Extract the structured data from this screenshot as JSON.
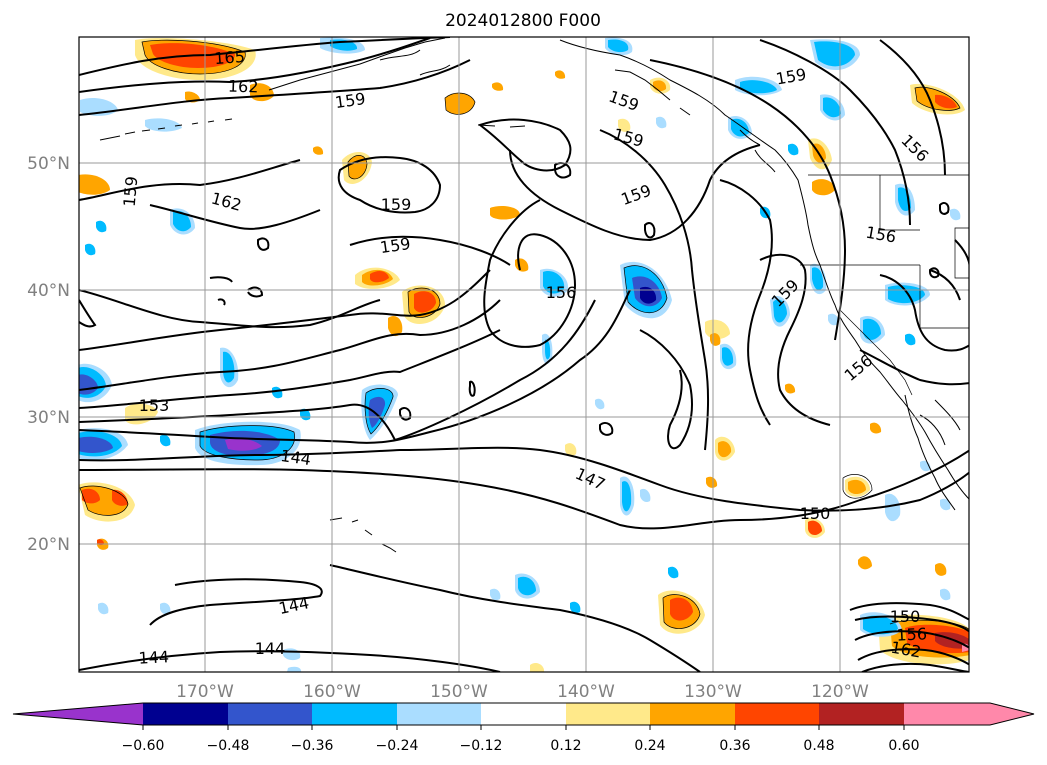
{
  "title": "2024012800 F000",
  "lat_labels": [
    "50°N",
    "40°N",
    "30°N",
    "20°N"
  ],
  "lon_labels": [
    "170°W",
    "160°W",
    "150°W",
    "140°W",
    "130°W",
    "120°W"
  ],
  "colorbar": {
    "ticks": [
      "−0.60",
      "−0.48",
      "−0.36",
      "−0.24",
      "−0.12",
      "0.12",
      "0.24",
      "0.36",
      "0.48",
      "0.60"
    ],
    "colors": [
      "#9933cc",
      "#000090",
      "#3355cc",
      "#00bbff",
      "#aaddff",
      "#ffffff",
      "#ffe98a",
      "#ffa500",
      "#ff4500",
      "#b22222",
      "#ff88aa"
    ]
  },
  "contour_labels": [
    {
      "text": "165"
    },
    {
      "text": "162"
    },
    {
      "text": "159"
    },
    {
      "text": "159"
    },
    {
      "text": "159"
    },
    {
      "text": "159"
    },
    {
      "text": "159"
    },
    {
      "text": "162"
    },
    {
      "text": "159"
    },
    {
      "text": "159"
    },
    {
      "text": "156"
    },
    {
      "text": "156"
    },
    {
      "text": "156"
    },
    {
      "text": "159"
    },
    {
      "text": "156"
    },
    {
      "text": "153"
    },
    {
      "text": "144"
    },
    {
      "text": "147"
    },
    {
      "text": "150"
    },
    {
      "text": "144"
    },
    {
      "text": "144"
    },
    {
      "text": "144"
    },
    {
      "text": "150"
    },
    {
      "text": "156"
    },
    {
      "text": "162"
    }
  ]
}
